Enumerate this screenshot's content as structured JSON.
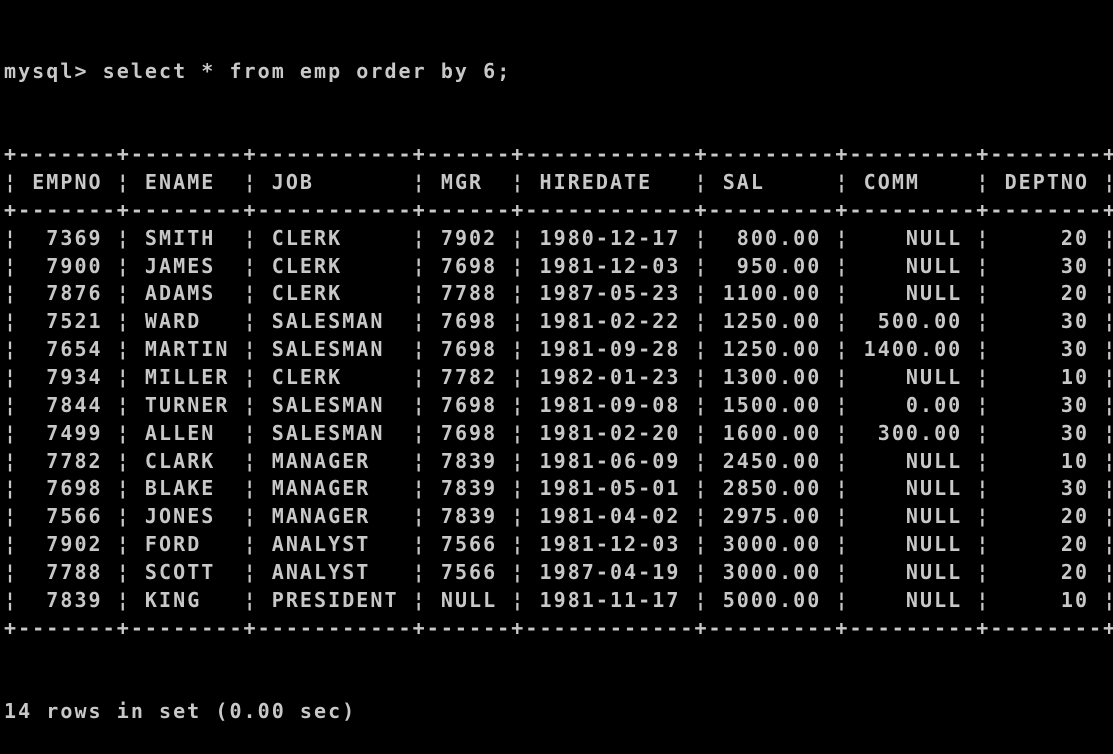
{
  "terminal": {
    "prompt": "mysql> ",
    "command": "select * from emp order by 6;",
    "footer": "14 rows in set (0.00 sec)",
    "text_color": "#c8c8c8",
    "background": "#000000"
  },
  "table": {
    "columns": [
      "EMPNO",
      "ENAME",
      "JOB",
      "MGR",
      "HIREDATE",
      "SAL",
      "COMM",
      "DEPTNO"
    ],
    "right_aligned": [
      true,
      false,
      false,
      false,
      false,
      true,
      true,
      true
    ],
    "rows": [
      [
        "7369",
        "SMITH",
        "CLERK",
        "7902",
        "1980-12-17",
        "800.00",
        "NULL",
        "20"
      ],
      [
        "7900",
        "JAMES",
        "CLERK",
        "7698",
        "1981-12-03",
        "950.00",
        "NULL",
        "30"
      ],
      [
        "7876",
        "ADAMS",
        "CLERK",
        "7788",
        "1987-05-23",
        "1100.00",
        "NULL",
        "20"
      ],
      [
        "7521",
        "WARD",
        "SALESMAN",
        "7698",
        "1981-02-22",
        "1250.00",
        "500.00",
        "30"
      ],
      [
        "7654",
        "MARTIN",
        "SALESMAN",
        "7698",
        "1981-09-28",
        "1250.00",
        "1400.00",
        "30"
      ],
      [
        "7934",
        "MILLER",
        "CLERK",
        "7782",
        "1982-01-23",
        "1300.00",
        "NULL",
        "10"
      ],
      [
        "7844",
        "TURNER",
        "SALESMAN",
        "7698",
        "1981-09-08",
        "1500.00",
        "0.00",
        "30"
      ],
      [
        "7499",
        "ALLEN",
        "SALESMAN",
        "7698",
        "1981-02-20",
        "1600.00",
        "300.00",
        "30"
      ],
      [
        "7782",
        "CLARK",
        "MANAGER",
        "7839",
        "1981-06-09",
        "2450.00",
        "NULL",
        "10"
      ],
      [
        "7698",
        "BLAKE",
        "MANAGER",
        "7839",
        "1981-05-01",
        "2850.00",
        "NULL",
        "30"
      ],
      [
        "7566",
        "JONES",
        "MANAGER",
        "7839",
        "1981-04-02",
        "2975.00",
        "NULL",
        "20"
      ],
      [
        "7902",
        "FORD",
        "ANALYST",
        "7566",
        "1981-12-03",
        "3000.00",
        "NULL",
        "20"
      ],
      [
        "7788",
        "SCOTT",
        "ANALYST",
        "7566",
        "1987-04-19",
        "3000.00",
        "NULL",
        "20"
      ],
      [
        "7839",
        "KING",
        "PRESIDENT",
        "NULL",
        "1981-11-17",
        "5000.00",
        "NULL",
        "10"
      ]
    ]
  }
}
